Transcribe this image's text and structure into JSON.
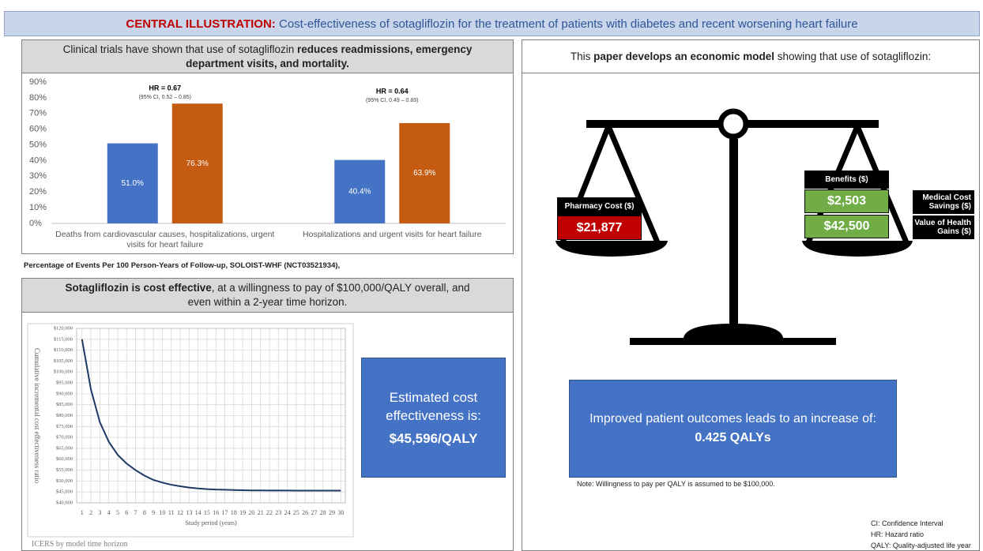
{
  "header": {
    "label": "CENTRAL ILLUSTRATION:",
    "title": "Cost-effectiveness of sotagliflozin for the treatment of patients with diabetes and recent worsening heart failure"
  },
  "trials_panel": {
    "heading": [
      "Clinical trials have shown that use of sotagliflozin ",
      "reduces readmissions, emergency department visits, and mortality."
    ],
    "footnote": "Percentage of Events Per 100 Person-Years of Follow-up, SOLOIST-WHF (NCT03521934),"
  },
  "cost_panel": {
    "heading": [
      "Sotagliflozin is cost effective",
      ", at a willingness to pay of $100,000/QALY  overall, and even within a 2-year time horizon."
    ],
    "result_label": "Estimated cost effectiveness is:",
    "result_value": "$45,596/QALY",
    "chart_caption": "ICERS by model time horizon"
  },
  "model_panel": {
    "heading": [
      "This ",
      "paper develops an economic model",
      " showing that use of sotagliflozin:"
    ],
    "pharmacy_label": "Pharmacy Cost ($)",
    "pharmacy_value": "$21,877",
    "benefits_label": "Benefits ($)",
    "benefits": [
      {
        "value": "$2,503",
        "label": "Medical Cost Savings ($)"
      },
      {
        "value": "$42,500",
        "label": "Value of Health Gains ($)"
      }
    ],
    "outcome_text": "Improved patient outcomes leads to an increase of:",
    "outcome_value": "0.425 QALYs",
    "note": "Note: Willingness to pay per QALY is assumed to be $100,000.",
    "abbreviations": [
      "CI: Confidence Interval",
      "HR: Hazard ratio",
      "QALY: Quality-adjusted life year"
    ]
  },
  "chart_data": [
    {
      "type": "bar",
      "categories": [
        "Deaths from cardiovascular causes, hospitalizations, urgent visits for heart failure",
        "Hospitalizations and urgent visits for heart failure"
      ],
      "series": [
        {
          "color": "#4472c4",
          "values": [
            51.0,
            40.4
          ],
          "value_labels": [
            "51.0%",
            "40.4%"
          ]
        },
        {
          "color": "#c55a11",
          "values": [
            76.3,
            63.9
          ],
          "value_labels": [
            "76.3%",
            "63.9%"
          ]
        }
      ],
      "annotations": [
        {
          "text": "HR = 0.67",
          "subtext": "(95% CI, 0.52 – 0.85)"
        },
        {
          "text": "HR = 0.64",
          "subtext": "(95% CI, 0.49 – 0.83)"
        }
      ],
      "ylim": [
        0,
        90
      ],
      "yticks": [
        {
          "value": 0,
          "label": "0%"
        },
        {
          "value": 10,
          "label": "10%"
        },
        {
          "value": 20,
          "label": "20%"
        },
        {
          "value": 30,
          "label": "30%"
        },
        {
          "value": 40,
          "label": "40%"
        },
        {
          "value": 50,
          "label": "50%"
        },
        {
          "value": 60,
          "label": "60%"
        },
        {
          "value": 70,
          "label": "70%"
        },
        {
          "value": 80,
          "label": "80%"
        },
        {
          "value": 90,
          "label": "90%"
        }
      ],
      "grid": false
    },
    {
      "type": "line",
      "x": [
        1,
        2,
        3,
        4,
        5,
        6,
        7,
        8,
        9,
        10,
        11,
        12,
        13,
        14,
        15,
        16,
        17,
        18,
        19,
        20,
        21,
        22,
        23,
        24,
        25,
        26,
        27,
        28,
        29,
        30
      ],
      "series": [
        {
          "color": "#1f3864",
          "values": [
            115000,
            92000,
            77000,
            68000,
            62000,
            58000,
            55000,
            52500,
            50500,
            49300,
            48300,
            47600,
            47000,
            46600,
            46300,
            46100,
            46000,
            45900,
            45800,
            45700,
            45700,
            45650,
            45650,
            45650,
            45600,
            45600,
            45600,
            45600,
            45600,
            45600
          ]
        }
      ],
      "xlabel": "Study period (years)",
      "ylabel": "Cumulative incremental cost effectiveness ratio",
      "xlim": [
        0.4,
        30.5
      ],
      "xticks": [
        1,
        2,
        3,
        4,
        5,
        6,
        7,
        8,
        9,
        10,
        11,
        12,
        13,
        14,
        15,
        16,
        17,
        18,
        19,
        20,
        21,
        22,
        23,
        24,
        25,
        26,
        27,
        28,
        29,
        30
      ],
      "ylim": [
        40000,
        120000
      ],
      "yticks": [
        {
          "value": 40000,
          "label": "$40,000"
        },
        {
          "value": 45000,
          "label": "$45,000"
        },
        {
          "value": 50000,
          "label": "$50,000"
        },
        {
          "value": 55000,
          "label": "$55,000"
        },
        {
          "value": 60000,
          "label": "$60,000"
        },
        {
          "value": 65000,
          "label": "$65,000"
        },
        {
          "value": 70000,
          "label": "$70,000"
        },
        {
          "value": 75000,
          "label": "$75,000"
        },
        {
          "value": 80000,
          "label": "$80,000"
        },
        {
          "value": 85000,
          "label": "$85,000"
        },
        {
          "value": 90000,
          "label": "$90,000"
        },
        {
          "value": 95000,
          "label": "$95,000"
        },
        {
          "value": 100000,
          "label": "$100,000"
        },
        {
          "value": 105000,
          "label": "$105,000"
        },
        {
          "value": 110000,
          "label": "$110,000"
        },
        {
          "value": 115000,
          "label": "$115,000"
        },
        {
          "value": 120000,
          "label": "$120,000"
        }
      ],
      "grid": true
    }
  ]
}
